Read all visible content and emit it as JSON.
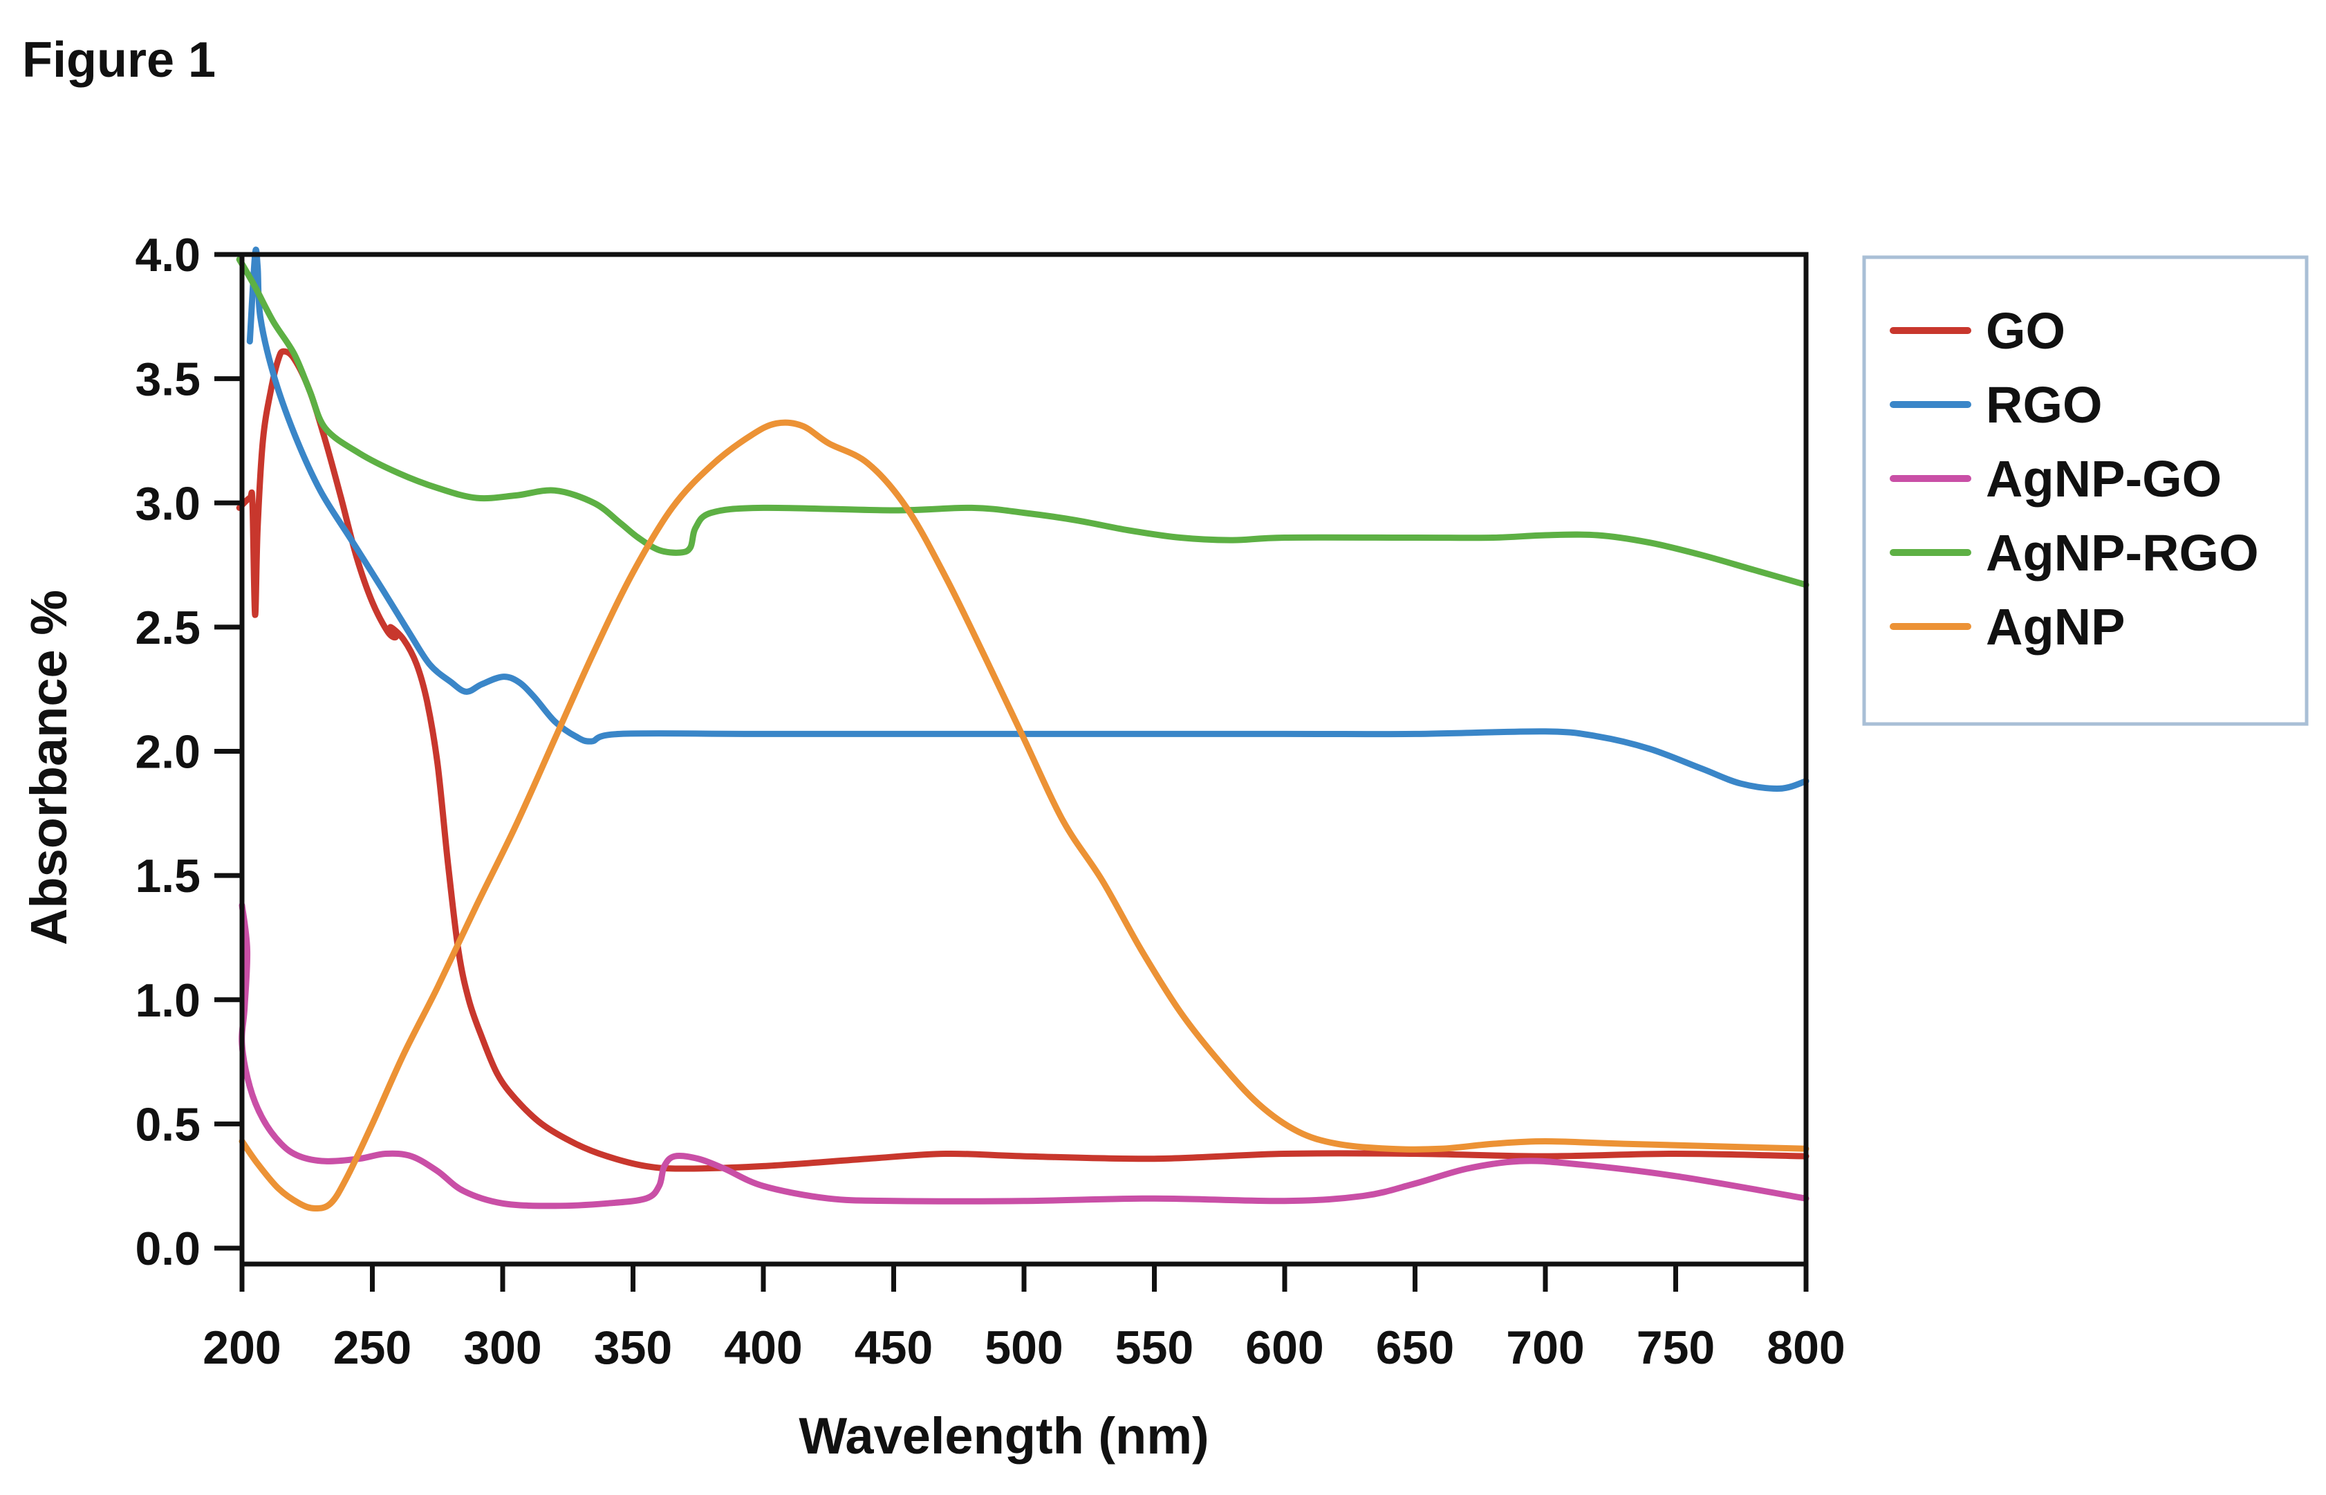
{
  "figure_label": "Figure 1",
  "chart_data": {
    "type": "line",
    "title": "",
    "xlabel": "Wavelength (nm)",
    "ylabel": "Absorbance %",
    "xlim": [
      200,
      800
    ],
    "ylim": [
      0.0,
      4.0
    ],
    "x_ticks": [
      200,
      250,
      300,
      350,
      400,
      450,
      500,
      550,
      600,
      650,
      700,
      750,
      800
    ],
    "y_ticks": [
      "0.0",
      "0.5",
      "1.0",
      "1.5",
      "2.0",
      "2.5",
      "3.0",
      "3.5",
      "4.0"
    ],
    "grid": false,
    "legend_position": "right",
    "series": [
      {
        "name": "GO",
        "color": "#c8372d",
        "points": [
          [
            199,
            2.98
          ],
          [
            203,
            3.02
          ],
          [
            204,
            3.0
          ],
          [
            205,
            2.55
          ],
          [
            206,
            2.9
          ],
          [
            208,
            3.25
          ],
          [
            211,
            3.45
          ],
          [
            214,
            3.58
          ],
          [
            216,
            3.61
          ],
          [
            220,
            3.58
          ],
          [
            226,
            3.45
          ],
          [
            232,
            3.25
          ],
          [
            238,
            3.02
          ],
          [
            244,
            2.78
          ],
          [
            250,
            2.6
          ],
          [
            256,
            2.48
          ],
          [
            259,
            2.46
          ],
          [
            257,
            2.5
          ],
          [
            262,
            2.45
          ],
          [
            267,
            2.35
          ],
          [
            271,
            2.2
          ],
          [
            275,
            1.95
          ],
          [
            279,
            1.55
          ],
          [
            283,
            1.2
          ],
          [
            287,
            1.0
          ],
          [
            292,
            0.85
          ],
          [
            298,
            0.7
          ],
          [
            305,
            0.6
          ],
          [
            315,
            0.5
          ],
          [
            328,
            0.42
          ],
          [
            340,
            0.37
          ],
          [
            355,
            0.33
          ],
          [
            370,
            0.32
          ],
          [
            400,
            0.33
          ],
          [
            440,
            0.36
          ],
          [
            470,
            0.38
          ],
          [
            500,
            0.37
          ],
          [
            550,
            0.36
          ],
          [
            600,
            0.38
          ],
          [
            650,
            0.38
          ],
          [
            700,
            0.37
          ],
          [
            750,
            0.38
          ],
          [
            800,
            0.37
          ]
        ]
      },
      {
        "name": "RGO",
        "color": "#3a86c8",
        "points": [
          [
            203,
            3.65
          ],
          [
            205,
            4.0
          ],
          [
            206,
            3.95
          ],
          [
            207,
            3.75
          ],
          [
            212,
            3.52
          ],
          [
            220,
            3.28
          ],
          [
            230,
            3.05
          ],
          [
            242,
            2.85
          ],
          [
            254,
            2.65
          ],
          [
            264,
            2.48
          ],
          [
            272,
            2.35
          ],
          [
            280,
            2.28
          ],
          [
            286,
            2.24
          ],
          [
            292,
            2.27
          ],
          [
            300,
            2.3
          ],
          [
            306,
            2.28
          ],
          [
            312,
            2.22
          ],
          [
            320,
            2.12
          ],
          [
            328,
            2.06
          ],
          [
            334,
            2.04
          ],
          [
            345,
            2.07
          ],
          [
            400,
            2.07
          ],
          [
            500,
            2.07
          ],
          [
            600,
            2.07
          ],
          [
            650,
            2.07
          ],
          [
            700,
            2.08
          ],
          [
            720,
            2.06
          ],
          [
            740,
            2.01
          ],
          [
            760,
            1.93
          ],
          [
            775,
            1.87
          ],
          [
            790,
            1.85
          ],
          [
            800,
            1.88
          ]
        ]
      },
      {
        "name": "AgNP-GO",
        "color": "#c94fa6",
        "points": [
          [
            200,
            1.38
          ],
          [
            202,
            1.2
          ],
          [
            201,
            0.97
          ],
          [
            200,
            0.82
          ],
          [
            203,
            0.65
          ],
          [
            208,
            0.52
          ],
          [
            215,
            0.42
          ],
          [
            222,
            0.37
          ],
          [
            232,
            0.35
          ],
          [
            245,
            0.36
          ],
          [
            255,
            0.38
          ],
          [
            265,
            0.37
          ],
          [
            275,
            0.31
          ],
          [
            285,
            0.23
          ],
          [
            300,
            0.18
          ],
          [
            320,
            0.17
          ],
          [
            340,
            0.18
          ],
          [
            355,
            0.2
          ],
          [
            360,
            0.25
          ],
          [
            362,
            0.33
          ],
          [
            366,
            0.37
          ],
          [
            375,
            0.36
          ],
          [
            385,
            0.32
          ],
          [
            400,
            0.25
          ],
          [
            425,
            0.2
          ],
          [
            450,
            0.19
          ],
          [
            500,
            0.19
          ],
          [
            550,
            0.2
          ],
          [
            600,
            0.19
          ],
          [
            630,
            0.21
          ],
          [
            650,
            0.26
          ],
          [
            670,
            0.32
          ],
          [
            690,
            0.35
          ],
          [
            710,
            0.34
          ],
          [
            750,
            0.29
          ],
          [
            800,
            0.2
          ]
        ]
      },
      {
        "name": "AgNP-RGO",
        "color": "#5db044",
        "points": [
          [
            199,
            3.98
          ],
          [
            205,
            3.87
          ],
          [
            212,
            3.73
          ],
          [
            220,
            3.6
          ],
          [
            226,
            3.45
          ],
          [
            232,
            3.3
          ],
          [
            245,
            3.2
          ],
          [
            260,
            3.12
          ],
          [
            275,
            3.06
          ],
          [
            290,
            3.02
          ],
          [
            305,
            3.03
          ],
          [
            320,
            3.05
          ],
          [
            335,
            3.0
          ],
          [
            345,
            2.92
          ],
          [
            352,
            2.86
          ],
          [
            360,
            2.81
          ],
          [
            368,
            2.8
          ],
          [
            372,
            2.82
          ],
          [
            374,
            2.9
          ],
          [
            380,
            2.96
          ],
          [
            400,
            2.98
          ],
          [
            450,
            2.97
          ],
          [
            480,
            2.98
          ],
          [
            500,
            2.96
          ],
          [
            520,
            2.93
          ],
          [
            540,
            2.89
          ],
          [
            560,
            2.86
          ],
          [
            580,
            2.85
          ],
          [
            600,
            2.86
          ],
          [
            650,
            2.86
          ],
          [
            680,
            2.86
          ],
          [
            700,
            2.87
          ],
          [
            720,
            2.87
          ],
          [
            740,
            2.84
          ],
          [
            760,
            2.79
          ],
          [
            780,
            2.73
          ],
          [
            800,
            2.67
          ]
        ]
      },
      {
        "name": "AgNP",
        "color": "#ec9235",
        "points": [
          [
            200,
            0.43
          ],
          [
            206,
            0.34
          ],
          [
            214,
            0.24
          ],
          [
            222,
            0.18
          ],
          [
            228,
            0.16
          ],
          [
            234,
            0.18
          ],
          [
            240,
            0.28
          ],
          [
            250,
            0.5
          ],
          [
            262,
            0.78
          ],
          [
            275,
            1.05
          ],
          [
            290,
            1.38
          ],
          [
            305,
            1.7
          ],
          [
            320,
            2.05
          ],
          [
            335,
            2.4
          ],
          [
            350,
            2.72
          ],
          [
            365,
            2.98
          ],
          [
            380,
            3.15
          ],
          [
            395,
            3.27
          ],
          [
            405,
            3.32
          ],
          [
            415,
            3.31
          ],
          [
            425,
            3.24
          ],
          [
            440,
            3.16
          ],
          [
            455,
            2.98
          ],
          [
            470,
            2.7
          ],
          [
            485,
            2.38
          ],
          [
            500,
            2.05
          ],
          [
            515,
            1.72
          ],
          [
            530,
            1.48
          ],
          [
            545,
            1.2
          ],
          [
            560,
            0.95
          ],
          [
            575,
            0.75
          ],
          [
            590,
            0.58
          ],
          [
            605,
            0.47
          ],
          [
            620,
            0.42
          ],
          [
            640,
            0.4
          ],
          [
            660,
            0.4
          ],
          [
            680,
            0.42
          ],
          [
            700,
            0.43
          ],
          [
            730,
            0.42
          ],
          [
            800,
            0.4
          ]
        ]
      }
    ]
  }
}
